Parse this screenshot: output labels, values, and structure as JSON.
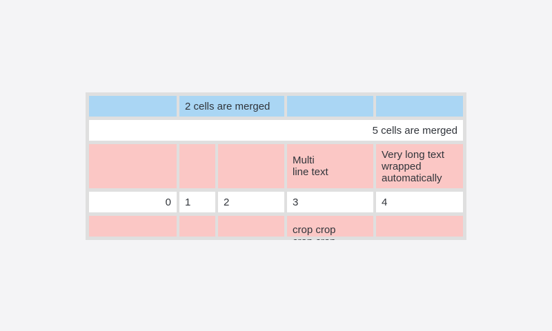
{
  "page": {
    "background_color": "#f4f4f6"
  },
  "table_widget": {
    "colors": {
      "cell_blue": "#aad6f4",
      "cell_pink": "#fbc7c5",
      "cell_white": "#ffffff",
      "frame_gray": "#dfdfdf",
      "text": "#30343a"
    },
    "rows": [
      {
        "type": "header-blue",
        "cells": [
          {
            "text": ""
          },
          {
            "text": "2 cells are merged",
            "merge": 2
          },
          {
            "text": ""
          },
          {
            "text": ""
          }
        ]
      },
      {
        "type": "merged-white",
        "cells": [
          {
            "text": "5 cells are merged",
            "merge": 5,
            "align": "right"
          }
        ]
      },
      {
        "type": "pink",
        "cells": [
          {
            "text": ""
          },
          {
            "text": ""
          },
          {
            "text": ""
          },
          {
            "text": "Multi\nline text"
          },
          {
            "text": "Very long text\nwrapped\nautomatically"
          }
        ]
      },
      {
        "type": "numbers-white",
        "cells": [
          {
            "text": "0",
            "align": "right"
          },
          {
            "text": "1"
          },
          {
            "text": "2"
          },
          {
            "text": "3"
          },
          {
            "text": "4"
          }
        ]
      },
      {
        "type": "pink-cropped",
        "cells": [
          {
            "text": ""
          },
          {
            "text": ""
          },
          {
            "text": ""
          },
          {
            "text": "crop crop\ncrop crop"
          },
          {
            "text": ""
          }
        ]
      }
    ]
  }
}
